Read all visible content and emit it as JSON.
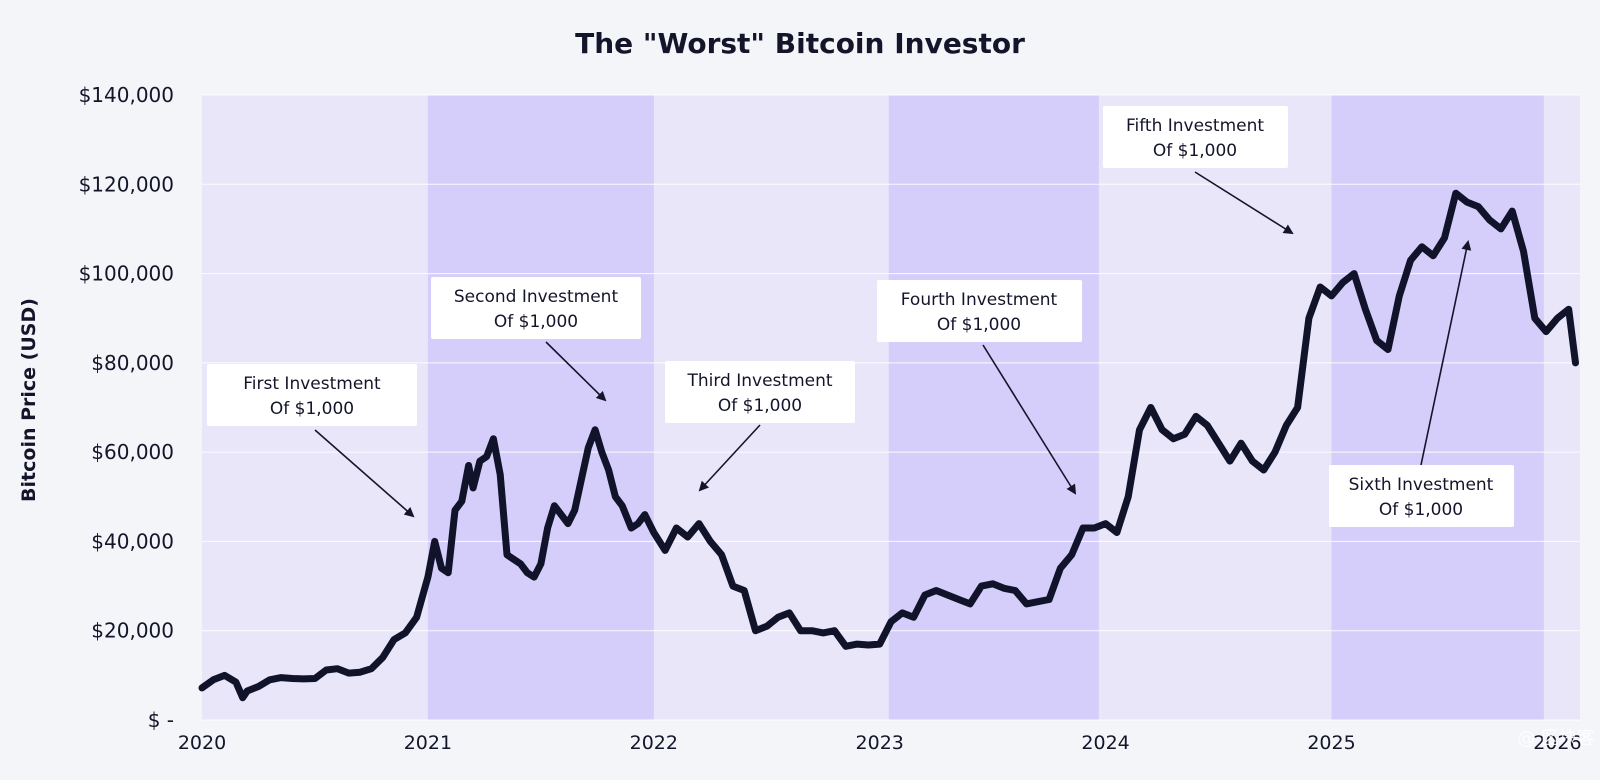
{
  "page": {
    "watermark": "@ 区块客"
  },
  "colors": {
    "background": "#f4f5f9",
    "plot_light": "#e8e6f8",
    "plot_shaded": "#d5cefb",
    "line": "#11132b",
    "grid": "#ffffff",
    "text": "#14152a"
  },
  "chart_data": {
    "type": "line",
    "title": "The \"Worst\" Bitcoin Investor",
    "xlabel": "",
    "ylabel": "Bitcoin Price (USD)",
    "xlim": [
      2020.0,
      2026.1
    ],
    "ylim": [
      0,
      140000
    ],
    "y_ticks": [
      {
        "value": 0,
        "label": "$ -"
      },
      {
        "value": 20000,
        "label": "$20,000"
      },
      {
        "value": 40000,
        "label": "$40,000"
      },
      {
        "value": 60000,
        "label": "$60,000"
      },
      {
        "value": 80000,
        "label": "$80,000"
      },
      {
        "value": 100000,
        "label": "$100,000"
      },
      {
        "value": 120000,
        "label": "$120,000"
      },
      {
        "value": 140000,
        "label": "$140,000"
      }
    ],
    "x_ticks": [
      {
        "value": 2020,
        "label": "2020"
      },
      {
        "value": 2021,
        "label": "2021"
      },
      {
        "value": 2022,
        "label": "2022"
      },
      {
        "value": 2023,
        "label": "2023"
      },
      {
        "value": 2024,
        "label": "2024"
      },
      {
        "value": 2025,
        "label": "2025"
      },
      {
        "value": 2026,
        "label": "2026"
      }
    ],
    "grid": true,
    "shaded_periods": [
      [
        2021.0,
        2022.0
      ],
      [
        2023.04,
        2023.97
      ],
      [
        2025.0,
        2025.94
      ]
    ],
    "series": [
      {
        "name": "Bitcoin Price",
        "x": [
          2020.0,
          2020.05,
          2020.1,
          2020.15,
          2020.18,
          2020.2,
          2020.25,
          2020.3,
          2020.35,
          2020.4,
          2020.45,
          2020.5,
          2020.55,
          2020.6,
          2020.65,
          2020.7,
          2020.75,
          2020.8,
          2020.85,
          2020.9,
          2020.95,
          2021.0,
          2021.03,
          2021.06,
          2021.09,
          2021.12,
          2021.15,
          2021.18,
          2021.2,
          2021.23,
          2021.26,
          2021.29,
          2021.32,
          2021.35,
          2021.38,
          2021.41,
          2021.44,
          2021.47,
          2021.5,
          2021.53,
          2021.56,
          2021.59,
          2021.62,
          2021.65,
          2021.68,
          2021.71,
          2021.74,
          2021.77,
          2021.8,
          2021.83,
          2021.86,
          2021.9,
          2021.93,
          2021.96,
          2022.0,
          2022.05,
          2022.1,
          2022.15,
          2022.2,
          2022.25,
          2022.3,
          2022.35,
          2022.4,
          2022.45,
          2022.5,
          2022.55,
          2022.6,
          2022.65,
          2022.7,
          2022.75,
          2022.8,
          2022.85,
          2022.9,
          2022.95,
          2023.0,
          2023.05,
          2023.1,
          2023.15,
          2023.2,
          2023.25,
          2023.3,
          2023.35,
          2023.4,
          2023.45,
          2023.5,
          2023.55,
          2023.6,
          2023.65,
          2023.7,
          2023.75,
          2023.8,
          2023.85,
          2023.9,
          2023.95,
          2024.0,
          2024.05,
          2024.1,
          2024.15,
          2024.2,
          2024.25,
          2024.3,
          2024.35,
          2024.4,
          2024.45,
          2024.5,
          2024.55,
          2024.6,
          2024.65,
          2024.7,
          2024.75,
          2024.8,
          2024.85,
          2024.9,
          2024.95,
          2025.0,
          2025.05,
          2025.1,
          2025.15,
          2025.2,
          2025.25,
          2025.3,
          2025.35,
          2025.4,
          2025.45,
          2025.5,
          2025.55,
          2025.6,
          2025.65,
          2025.7,
          2025.75,
          2025.8,
          2025.85,
          2025.9,
          2025.95,
          2026.0,
          2026.05,
          2026.08
        ],
        "values": [
          7200,
          9000,
          10000,
          8500,
          5000,
          6500,
          7500,
          9000,
          9500,
          9300,
          9200,
          9300,
          11200,
          11500,
          10500,
          10700,
          11500,
          14000,
          18000,
          19500,
          23000,
          32000,
          40000,
          34000,
          33000,
          47000,
          49000,
          57000,
          52000,
          58000,
          59000,
          63000,
          55000,
          37000,
          36000,
          35000,
          33000,
          32000,
          35000,
          43000,
          48000,
          46000,
          44000,
          47000,
          54000,
          61000,
          65000,
          60000,
          56000,
          50000,
          48000,
          43000,
          44000,
          46000,
          42000,
          38000,
          43000,
          41000,
          44000,
          40000,
          37000,
          30000,
          29000,
          20000,
          21000,
          23000,
          24000,
          20000,
          20000,
          19500,
          20000,
          16500,
          17000,
          16800,
          17000,
          22000,
          24000,
          23000,
          28000,
          29000,
          28000,
          27000,
          26000,
          30000,
          30500,
          29500,
          29000,
          26000,
          26500,
          27000,
          34000,
          37000,
          43000,
          43000,
          44000,
          42000,
          50000,
          65000,
          70000,
          65000,
          63000,
          64000,
          68000,
          66000,
          62000,
          58000,
          62000,
          58000,
          56000,
          60000,
          66000,
          70000,
          90000,
          97000,
          95000,
          98000,
          100000,
          92000,
          85000,
          83000,
          95000,
          103000,
          106000,
          104000,
          108000,
          118000,
          116000,
          115000,
          112000,
          110000,
          114000,
          105000,
          90000,
          87000,
          90000,
          92000,
          80000
        ]
      }
    ],
    "annotations": [
      {
        "line1": "First Investment",
        "line2": "Of $1,000",
        "x": 2021.0,
        "y": 40000
      },
      {
        "line1": "Second Investment",
        "line2": "Of $1,000",
        "x": 2021.86,
        "y": 66000
      },
      {
        "line1": "Third Investment",
        "line2": "Of $1,000",
        "x": 2022.24,
        "y": 48000
      },
      {
        "line1": "Fourth Investment",
        "line2": "Of $1,000",
        "x": 2023.96,
        "y": 47000
      },
      {
        "line1": "Fifth Investment",
        "line2": "Of $1,000",
        "x": 2024.96,
        "y": 108000
      },
      {
        "line1": "Sixth Investment",
        "line2": "Of $1,000",
        "x": 2025.7,
        "y": 107000
      }
    ]
  }
}
